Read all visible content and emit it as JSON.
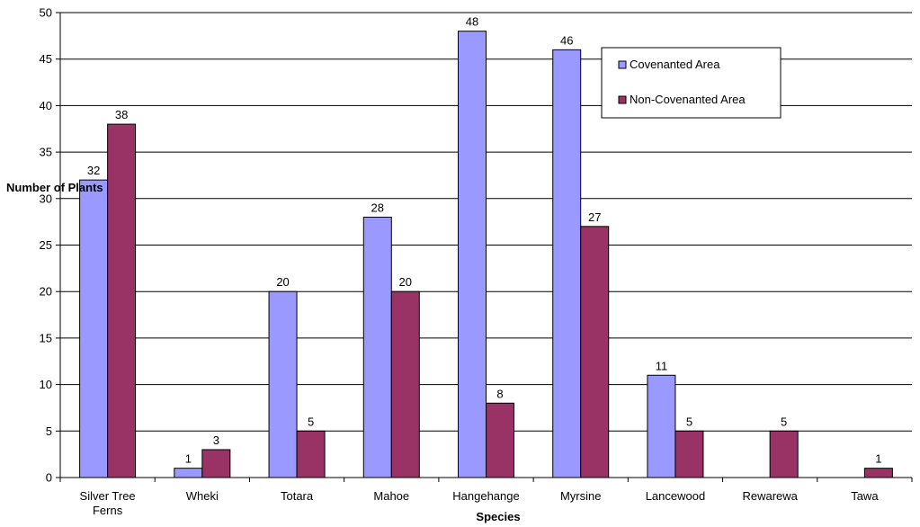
{
  "chart_data": {
    "type": "bar",
    "title": "",
    "xlabel": "Species",
    "ylabel": "Number of Plants",
    "ylim": [
      0,
      50
    ],
    "ytick_step": 5,
    "grid": true,
    "legend_position": "top-right",
    "categories": [
      [
        "Silver Tree",
        "Ferns"
      ],
      [
        "Wheki"
      ],
      [
        "Totara"
      ],
      [
        "Mahoe"
      ],
      [
        "Hangehange"
      ],
      [
        "Myrsine"
      ],
      [
        "Lancewood"
      ],
      [
        "Rewarewa"
      ],
      [
        "Tawa"
      ]
    ],
    "series": [
      {
        "name": "Covenanted Area",
        "color": "#9999ff",
        "values": [
          32,
          1,
          20,
          28,
          48,
          46,
          11,
          null,
          null
        ]
      },
      {
        "name": "Non-Covenanted Area",
        "color": "#993366",
        "values": [
          38,
          3,
          5,
          20,
          8,
          27,
          5,
          5,
          1
        ]
      }
    ]
  }
}
